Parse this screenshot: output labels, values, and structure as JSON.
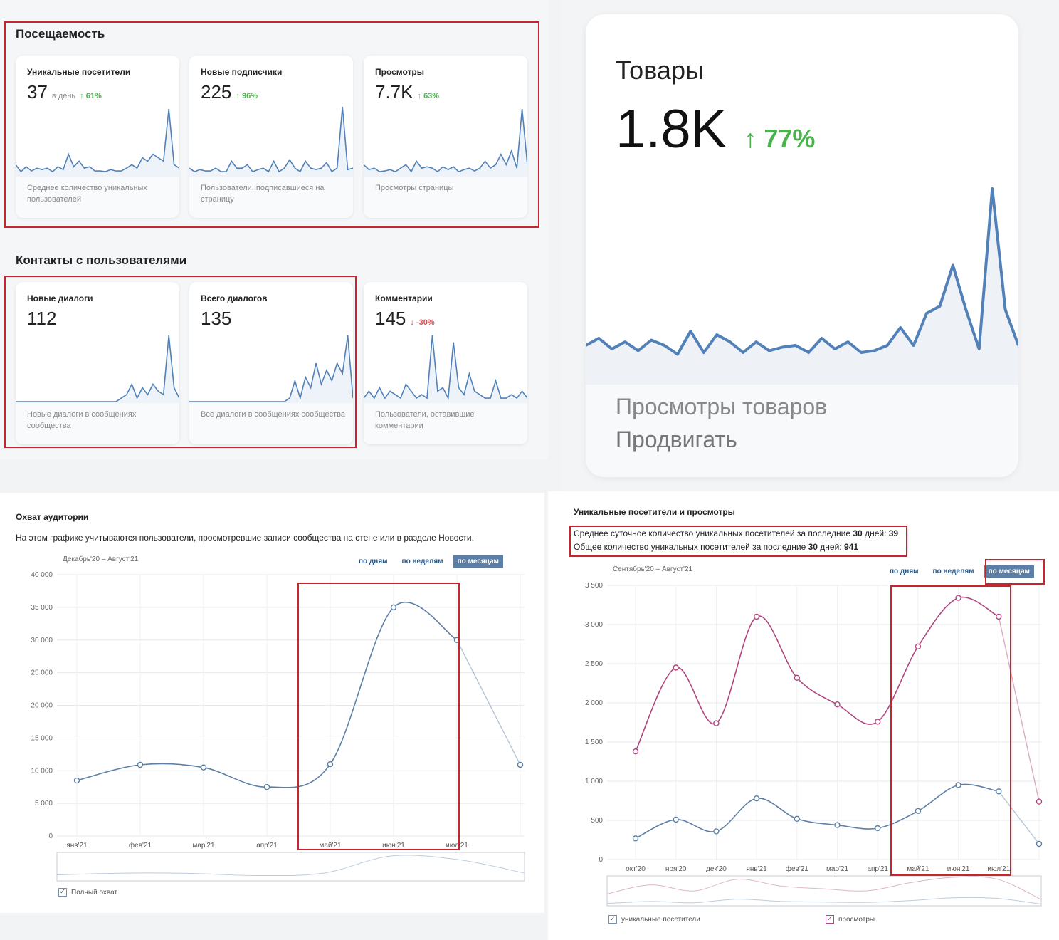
{
  "top_left": {
    "section1_title": "Посещаемость",
    "section2_title": "Контакты с пользователями",
    "cards": [
      {
        "title": "Уникальные посетители",
        "value": "37",
        "unit": "в день",
        "delta": "61%",
        "delta_dir": "up",
        "desc": "Среднее количество уникальных пользователей",
        "spark": [
          0.15,
          0.05,
          0.12,
          0.06,
          0.1,
          0.08,
          0.1,
          0.05,
          0.12,
          0.08,
          0.3,
          0.12,
          0.2,
          0.1,
          0.12,
          0.06,
          0.06,
          0.05,
          0.08,
          0.06,
          0.06,
          0.1,
          0.15,
          0.1,
          0.25,
          0.2,
          0.3,
          0.25,
          0.2,
          0.95,
          0.15,
          0.1
        ]
      },
      {
        "title": "Новые подписчики",
        "value": "225",
        "unit": "",
        "delta": "96%",
        "delta_dir": "up",
        "desc": "Пользователи, подписавшиеся на страницу",
        "spark": [
          0.1,
          0.05,
          0.08,
          0.06,
          0.06,
          0.1,
          0.05,
          0.05,
          0.2,
          0.1,
          0.1,
          0.15,
          0.05,
          0.08,
          0.1,
          0.05,
          0.2,
          0.05,
          0.1,
          0.22,
          0.1,
          0.05,
          0.2,
          0.1,
          0.08,
          0.1,
          0.18,
          0.05,
          0.1,
          0.98,
          0.08,
          0.1
        ]
      },
      {
        "title": "Просмотры",
        "value": "7.7K",
        "unit": "",
        "delta": "63%",
        "delta_dir": "up",
        "desc": "Просмотры страницы",
        "spark": [
          0.15,
          0.08,
          0.1,
          0.05,
          0.06,
          0.08,
          0.05,
          0.1,
          0.15,
          0.05,
          0.2,
          0.1,
          0.12,
          0.1,
          0.05,
          0.12,
          0.08,
          0.12,
          0.05,
          0.08,
          0.1,
          0.06,
          0.1,
          0.2,
          0.1,
          0.15,
          0.3,
          0.15,
          0.35,
          0.1,
          0.95,
          0.15
        ]
      },
      {
        "title": "Новые диалоги",
        "value": "112",
        "unit": "",
        "delta": "",
        "delta_dir": "",
        "desc": "Новые диалоги в сообщениях сообщества",
        "spark": [
          0,
          0,
          0,
          0,
          0,
          0,
          0,
          0,
          0,
          0,
          0,
          0,
          0,
          0,
          0,
          0,
          0,
          0,
          0,
          0,
          0.05,
          0.1,
          0.25,
          0.05,
          0.2,
          0.1,
          0.25,
          0.15,
          0.1,
          0.95,
          0.2,
          0.05
        ]
      },
      {
        "title": "Всего диалогов",
        "value": "135",
        "unit": "",
        "delta": "",
        "delta_dir": "",
        "desc": "Все диалоги в сообщениях сообщества",
        "spark": [
          0,
          0,
          0,
          0,
          0,
          0,
          0,
          0,
          0,
          0,
          0,
          0,
          0,
          0,
          0,
          0,
          0,
          0,
          0,
          0.05,
          0.3,
          0.05,
          0.35,
          0.2,
          0.55,
          0.25,
          0.45,
          0.3,
          0.55,
          0.4,
          0.95,
          0.05
        ]
      },
      {
        "title": "Комментарии",
        "value": "145",
        "unit": "",
        "delta": "-30%",
        "delta_dir": "down",
        "desc": "Пользователи, оставившие комментарии",
        "spark": [
          0.05,
          0.15,
          0.05,
          0.2,
          0.05,
          0.15,
          0.1,
          0.05,
          0.25,
          0.15,
          0.05,
          0.1,
          0.05,
          0.95,
          0.15,
          0.2,
          0.05,
          0.85,
          0.2,
          0.1,
          0.4,
          0.15,
          0.1,
          0.05,
          0.05,
          0.3,
          0.05,
          0.05,
          0.1,
          0.05,
          0.15,
          0.05
        ]
      }
    ]
  },
  "top_right": {
    "title": "Товары",
    "value": "1.8K",
    "delta": "77%",
    "desc1": "Просмотры товаров",
    "desc2": "Продвигать",
    "spark": [
      0.1,
      0.14,
      0.08,
      0.12,
      0.07,
      0.13,
      0.1,
      0.05,
      0.18,
      0.06,
      0.16,
      0.12,
      0.06,
      0.12,
      0.07,
      0.09,
      0.1,
      0.06,
      0.14,
      0.08,
      0.12,
      0.06,
      0.07,
      0.1,
      0.2,
      0.1,
      0.28,
      0.32,
      0.55,
      0.3,
      0.08,
      0.98,
      0.3,
      0.1
    ]
  },
  "bottom_left": {
    "title": "Охват аудитории",
    "subtitle": "На этом графике учитываются пользователи, просмотревшие записи сообщества на стене или в разделе Новости.",
    "range": "Декабрь'20 – Август'21",
    "tabs": [
      "по дням",
      "по неделям",
      "по месяцам"
    ],
    "legend": "Полный охват"
  },
  "bottom_right": {
    "title": "Уникальные посетители и просмотры",
    "stat1_label": "Среднее суточное количество уникальных посетителей за последние",
    "stat1_days": "30",
    "stat1_suffix": "дней:",
    "stat1_value": "39",
    "stat2_label": "Общее количество уникальных посетителей за последние",
    "stat2_days": "30",
    "stat2_suffix": "дней:",
    "stat2_value": "941",
    "range": "Сентябрь'20 – Август'21",
    "tabs": [
      "по дням",
      "по неделям",
      "по месяцам"
    ],
    "legend1": "уникальные посетители",
    "legend2": "просмотры"
  },
  "chart_data": [
    {
      "type": "line",
      "title": "Охват аудитории",
      "x": [
        "янв'21",
        "фев'21",
        "мар'21",
        "апр'21",
        "май'21",
        "июн'21",
        "июл'21",
        "авг'21"
      ],
      "x_labels_shown": [
        "янв'21",
        "фев'21",
        "мар'21",
        "апр'21",
        "май'21",
        "июн'21",
        "июл'21"
      ],
      "series": [
        {
          "name": "Полный охват",
          "values": [
            8500,
            10900,
            10500,
            7500,
            11000,
            35000,
            30000,
            10900
          ]
        }
      ],
      "y_ticks": [
        0,
        5000,
        10000,
        15000,
        20000,
        25000,
        30000,
        35000,
        40000
      ],
      "y_tick_labels": [
        "0",
        "5 000",
        "10 000",
        "15 000",
        "20 000",
        "25 000",
        "30 000",
        "35 000",
        "40 000"
      ],
      "ylim": [
        0,
        40000
      ],
      "color": "#5b7fa6"
    },
    {
      "type": "line",
      "title": "Уникальные посетители и просмотры",
      "x": [
        "окт'20",
        "ноя'20",
        "дек'20",
        "янв'21",
        "фев'21",
        "мар'21",
        "апр'21",
        "май'21",
        "июн'21",
        "июл'21",
        "авг'21"
      ],
      "x_labels_shown": [
        "окт'20",
        "ноя'20",
        "дек'20",
        "янв'21",
        "фев'21",
        "мар'21",
        "апр'21",
        "май'21",
        "июн'21",
        "июл'21"
      ],
      "series": [
        {
          "name": "уникальные посетители",
          "values": [
            270,
            510,
            360,
            780,
            520,
            440,
            400,
            620,
            950,
            870,
            200
          ],
          "color": "#5b7fa6"
        },
        {
          "name": "просмотры",
          "values": [
            1380,
            2450,
            1740,
            3100,
            2320,
            1980,
            1760,
            2720,
            3340,
            3100,
            740
          ],
          "color": "#b0467f"
        }
      ],
      "y_ticks": [
        0,
        500,
        1000,
        1500,
        2000,
        2500,
        3000,
        3500
      ],
      "y_tick_labels": [
        "0",
        "500",
        "1 000",
        "1 500",
        "2 000",
        "2 500",
        "3 000",
        "3 500"
      ],
      "ylim": [
        0,
        3500
      ]
    }
  ]
}
